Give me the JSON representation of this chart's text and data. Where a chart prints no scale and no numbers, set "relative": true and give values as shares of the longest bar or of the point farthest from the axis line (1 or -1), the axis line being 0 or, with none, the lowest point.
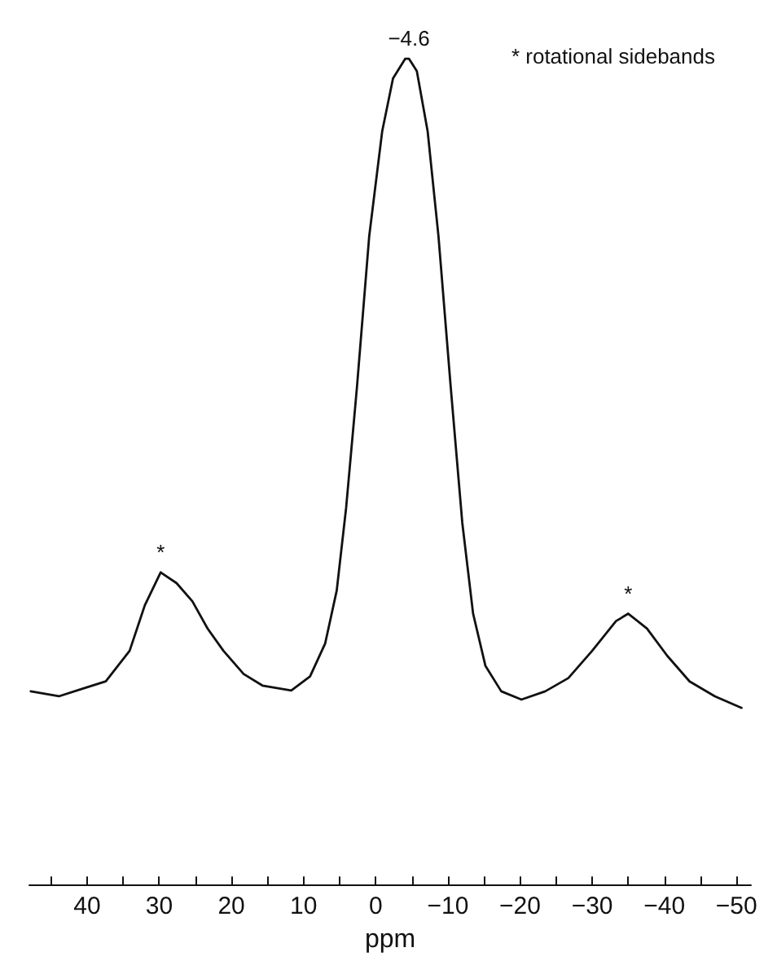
{
  "chart_data": {
    "type": "line",
    "relative": true,
    "xlabel": "ppm",
    "xlim": [
      48,
      -52
    ],
    "xticks": [
      {
        "value": 45,
        "label": null
      },
      40,
      {
        "value": 35,
        "label": null
      },
      30,
      {
        "value": 25,
        "label": null
      },
      20,
      {
        "value": 15,
        "label": null
      },
      10,
      {
        "value": 5,
        "label": null
      },
      0,
      {
        "value": -5,
        "label": null
      },
      -10,
      {
        "value": -15,
        "label": null
      },
      -20,
      {
        "value": -25,
        "label": null
      },
      -30,
      {
        "value": -35,
        "label": null
      },
      -40,
      {
        "value": -45,
        "label": null
      },
      -50
    ],
    "x": [
      47.8,
      43.9,
      40.7,
      37.4,
      34.1,
      32.0,
      29.8,
      27.6,
      25.4,
      23.3,
      21.1,
      18.3,
      15.7,
      11.7,
      9.1,
      7.0,
      5.4,
      4.1,
      2.6,
      0.9,
      -0.9,
      -2.4,
      -4.1,
      -4.6,
      -5.7,
      -7.2,
      -8.7,
      -10.4,
      -12.0,
      -13.5,
      -15.2,
      -17.4,
      -20.2,
      -23.5,
      -26.7,
      -30.0,
      -33.3,
      -35.0,
      -37.6,
      -40.4,
      -43.5,
      -47.0,
      -50.7
    ],
    "series": [
      {
        "color": "#111111",
        "values": [
          0.234,
          0.228,
          0.237,
          0.246,
          0.283,
          0.338,
          0.378,
          0.365,
          0.343,
          0.31,
          0.283,
          0.255,
          0.241,
          0.235,
          0.252,
          0.292,
          0.356,
          0.456,
          0.602,
          0.785,
          0.912,
          0.976,
          1.0,
          1.0,
          0.985,
          0.912,
          0.785,
          0.602,
          0.438,
          0.328,
          0.265,
          0.234,
          0.224,
          0.234,
          0.25,
          0.283,
          0.319,
          0.328,
          0.31,
          0.277,
          0.246,
          0.228,
          0.214
        ]
      }
    ],
    "annotations": [
      {
        "text": "−4.6",
        "x": -4.6,
        "y": 1.0
      },
      {
        "text": "*",
        "x": 29.8,
        "y": 0.378
      },
      {
        "text": "*",
        "x": -35.0,
        "y": 0.328
      },
      "* rotational sidebands"
    ],
    "marker": "none",
    "line_style": "solid"
  }
}
